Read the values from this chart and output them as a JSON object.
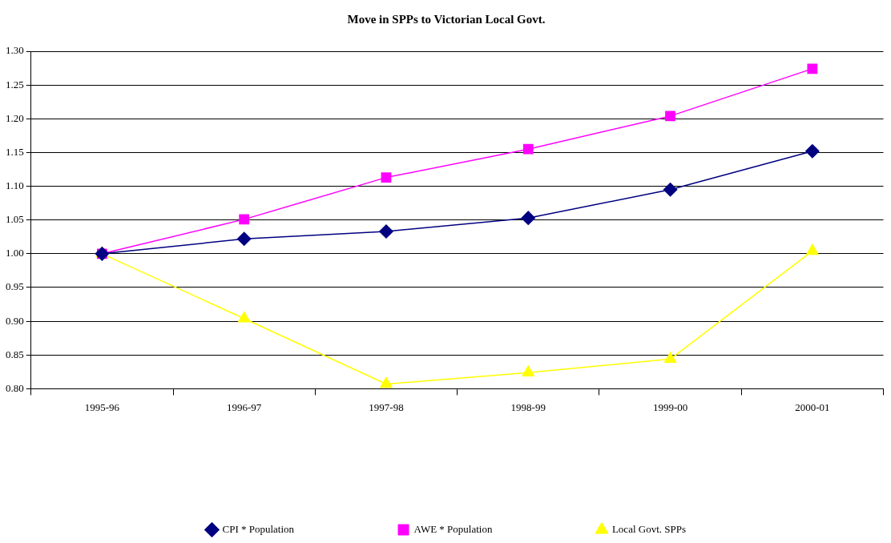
{
  "chart_data": {
    "type": "line",
    "title": "Move in SPPs to Victorian Local Govt.",
    "categories": [
      "1995-96",
      "1996-97",
      "1997-98",
      "1998-99",
      "1999-00",
      "2000-01"
    ],
    "series": [
      {
        "name": "CPI * Population",
        "color": "#000080",
        "marker": "diamond",
        "values": [
          1.0,
          1.022,
          1.033,
          1.053,
          1.095,
          1.152
        ]
      },
      {
        "name": "AWE * Population",
        "color": "#ff00ff",
        "marker": "square",
        "values": [
          1.0,
          1.051,
          1.113,
          1.155,
          1.204,
          1.274
        ]
      },
      {
        "name": "Local Govt. SPPs",
        "color": "#ffff00",
        "marker": "triangle",
        "values": [
          1.0,
          0.904,
          0.807,
          0.824,
          0.844,
          1.004
        ]
      }
    ],
    "ylim": [
      0.8,
      1.3
    ],
    "yticks": [
      {
        "value": 0.8,
        "label": "0.80"
      },
      {
        "value": 0.85,
        "label": "0.85"
      },
      {
        "value": 0.9,
        "label": "0.90"
      },
      {
        "value": 0.95,
        "label": "0.95"
      },
      {
        "value": 1.0,
        "label": "1.00"
      },
      {
        "value": 1.05,
        "label": "1.05"
      },
      {
        "value": 1.1,
        "label": "1.10"
      },
      {
        "value": 1.15,
        "label": "1.15"
      },
      {
        "value": 1.2,
        "label": "1.20"
      },
      {
        "value": 1.25,
        "label": "1.25"
      },
      {
        "value": 1.3,
        "label": "1.30"
      }
    ],
    "grid": "y",
    "legend": "bottom",
    "line_style": "solid"
  }
}
